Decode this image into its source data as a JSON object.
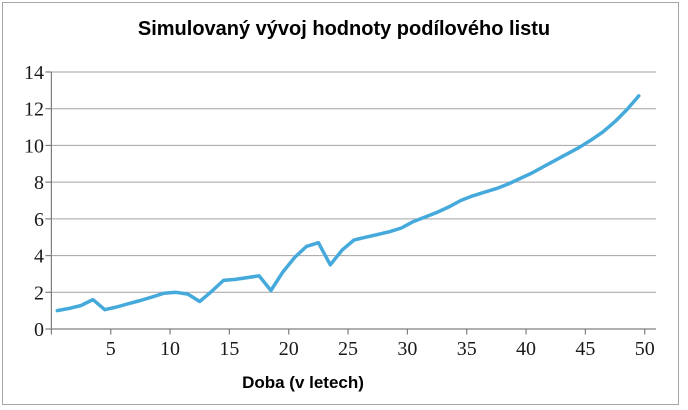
{
  "chart_data": {
    "type": "line",
    "title": "Simulovaný vývoj hodnoty podílového listu",
    "xlabel": "Doba (v letech)",
    "ylabel": "",
    "x": [
      1,
      2,
      3,
      4,
      5,
      6,
      7,
      8,
      9,
      10,
      11,
      12,
      13,
      14,
      15,
      16,
      17,
      18,
      19,
      20,
      21,
      22,
      23,
      24,
      25,
      26,
      27,
      28,
      29,
      30,
      31,
      32,
      33,
      34,
      35,
      36,
      37,
      38,
      39,
      40,
      41,
      42,
      43,
      44,
      45,
      46,
      47,
      48,
      49,
      50
    ],
    "values": [
      1.0,
      1.12,
      1.28,
      1.6,
      1.05,
      1.2,
      1.38,
      1.55,
      1.75,
      1.95,
      2.0,
      1.9,
      1.5,
      2.05,
      2.65,
      2.7,
      2.8,
      2.9,
      2.1,
      3.1,
      3.9,
      4.5,
      4.7,
      3.5,
      4.3,
      4.85,
      5.0,
      5.15,
      5.3,
      5.5,
      5.85,
      6.1,
      6.35,
      6.65,
      7.0,
      7.25,
      7.45,
      7.65,
      7.9,
      8.2,
      8.5,
      8.85,
      9.2,
      9.55,
      9.9,
      10.3,
      10.75,
      11.3,
      11.95,
      12.7
    ],
    "xlim": [
      0,
      50
    ],
    "ylim": [
      0,
      14
    ],
    "x_tick_labels": [
      "5",
      "10",
      "15",
      "20",
      "25",
      "30",
      "35",
      "40",
      "45",
      "50"
    ],
    "y_tick_labels": [
      "0",
      "2",
      "4",
      "6",
      "8",
      "10",
      "12",
      "14"
    ],
    "y_ticks": [
      0,
      2,
      4,
      6,
      8,
      10,
      12,
      14
    ],
    "grid": "horizontal gridlines only",
    "legend": "none",
    "colors": {
      "series_line": "#45AADB",
      "gridline": "#a3a3a3",
      "axis_line": "#7f7f7f",
      "tick_label_text": "#1a1a1a",
      "title_text": "#000000",
      "chart_border": "#a6a6a6",
      "background": "#ffffff"
    }
  }
}
